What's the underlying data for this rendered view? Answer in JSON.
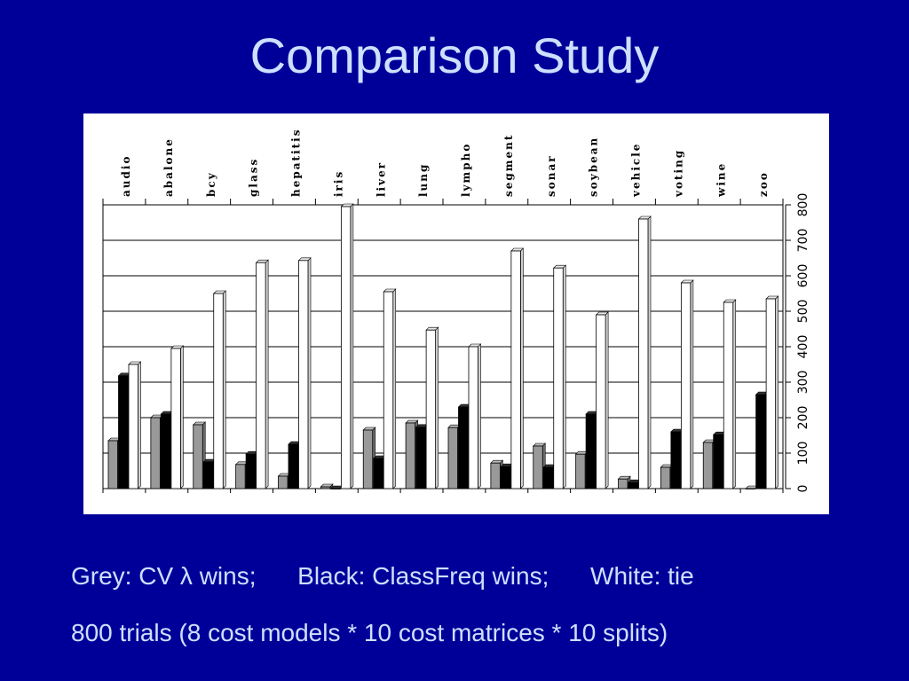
{
  "slide": {
    "title": "Comparison Study",
    "caption_line1": "Grey: CV λ wins;      Black: ClassFreq wins;      White: tie",
    "caption_line2": "800 trials (8 cost models * 10 cost matrices * 10 splits)"
  },
  "chart_data": {
    "type": "bar",
    "categories": [
      "audio",
      "abalone",
      "bcy",
      "glass",
      "hepatitis",
      "iris",
      "liver",
      "lung",
      "lympho",
      "segment",
      "sonar",
      "soybean",
      "vehicle",
      "voting",
      "wine",
      "zoo"
    ],
    "series": [
      {
        "name": "Grey",
        "color": "#999999",
        "values": [
          135,
          200,
          180,
          68,
          35,
          5,
          165,
          185,
          172,
          72,
          120,
          97,
          27,
          60,
          130,
          0
        ]
      },
      {
        "name": "Black",
        "color": "#000000",
        "values": [
          318,
          210,
          75,
          97,
          125,
          0,
          85,
          173,
          230,
          62,
          60,
          210,
          17,
          160,
          152,
          265
        ]
      },
      {
        "name": "White",
        "color": "#ffffff",
        "values": [
          350,
          395,
          550,
          637,
          643,
          795,
          555,
          447,
          400,
          670,
          622,
          490,
          760,
          580,
          525,
          535
        ]
      }
    ],
    "yticks": [
      0,
      100,
      200,
      300,
      400,
      500,
      600,
      700,
      800
    ],
    "ylim": [
      0,
      800
    ],
    "grid": true,
    "legend": "none",
    "category_labels_position": "top-rotated",
    "value_axis_position": "right"
  }
}
